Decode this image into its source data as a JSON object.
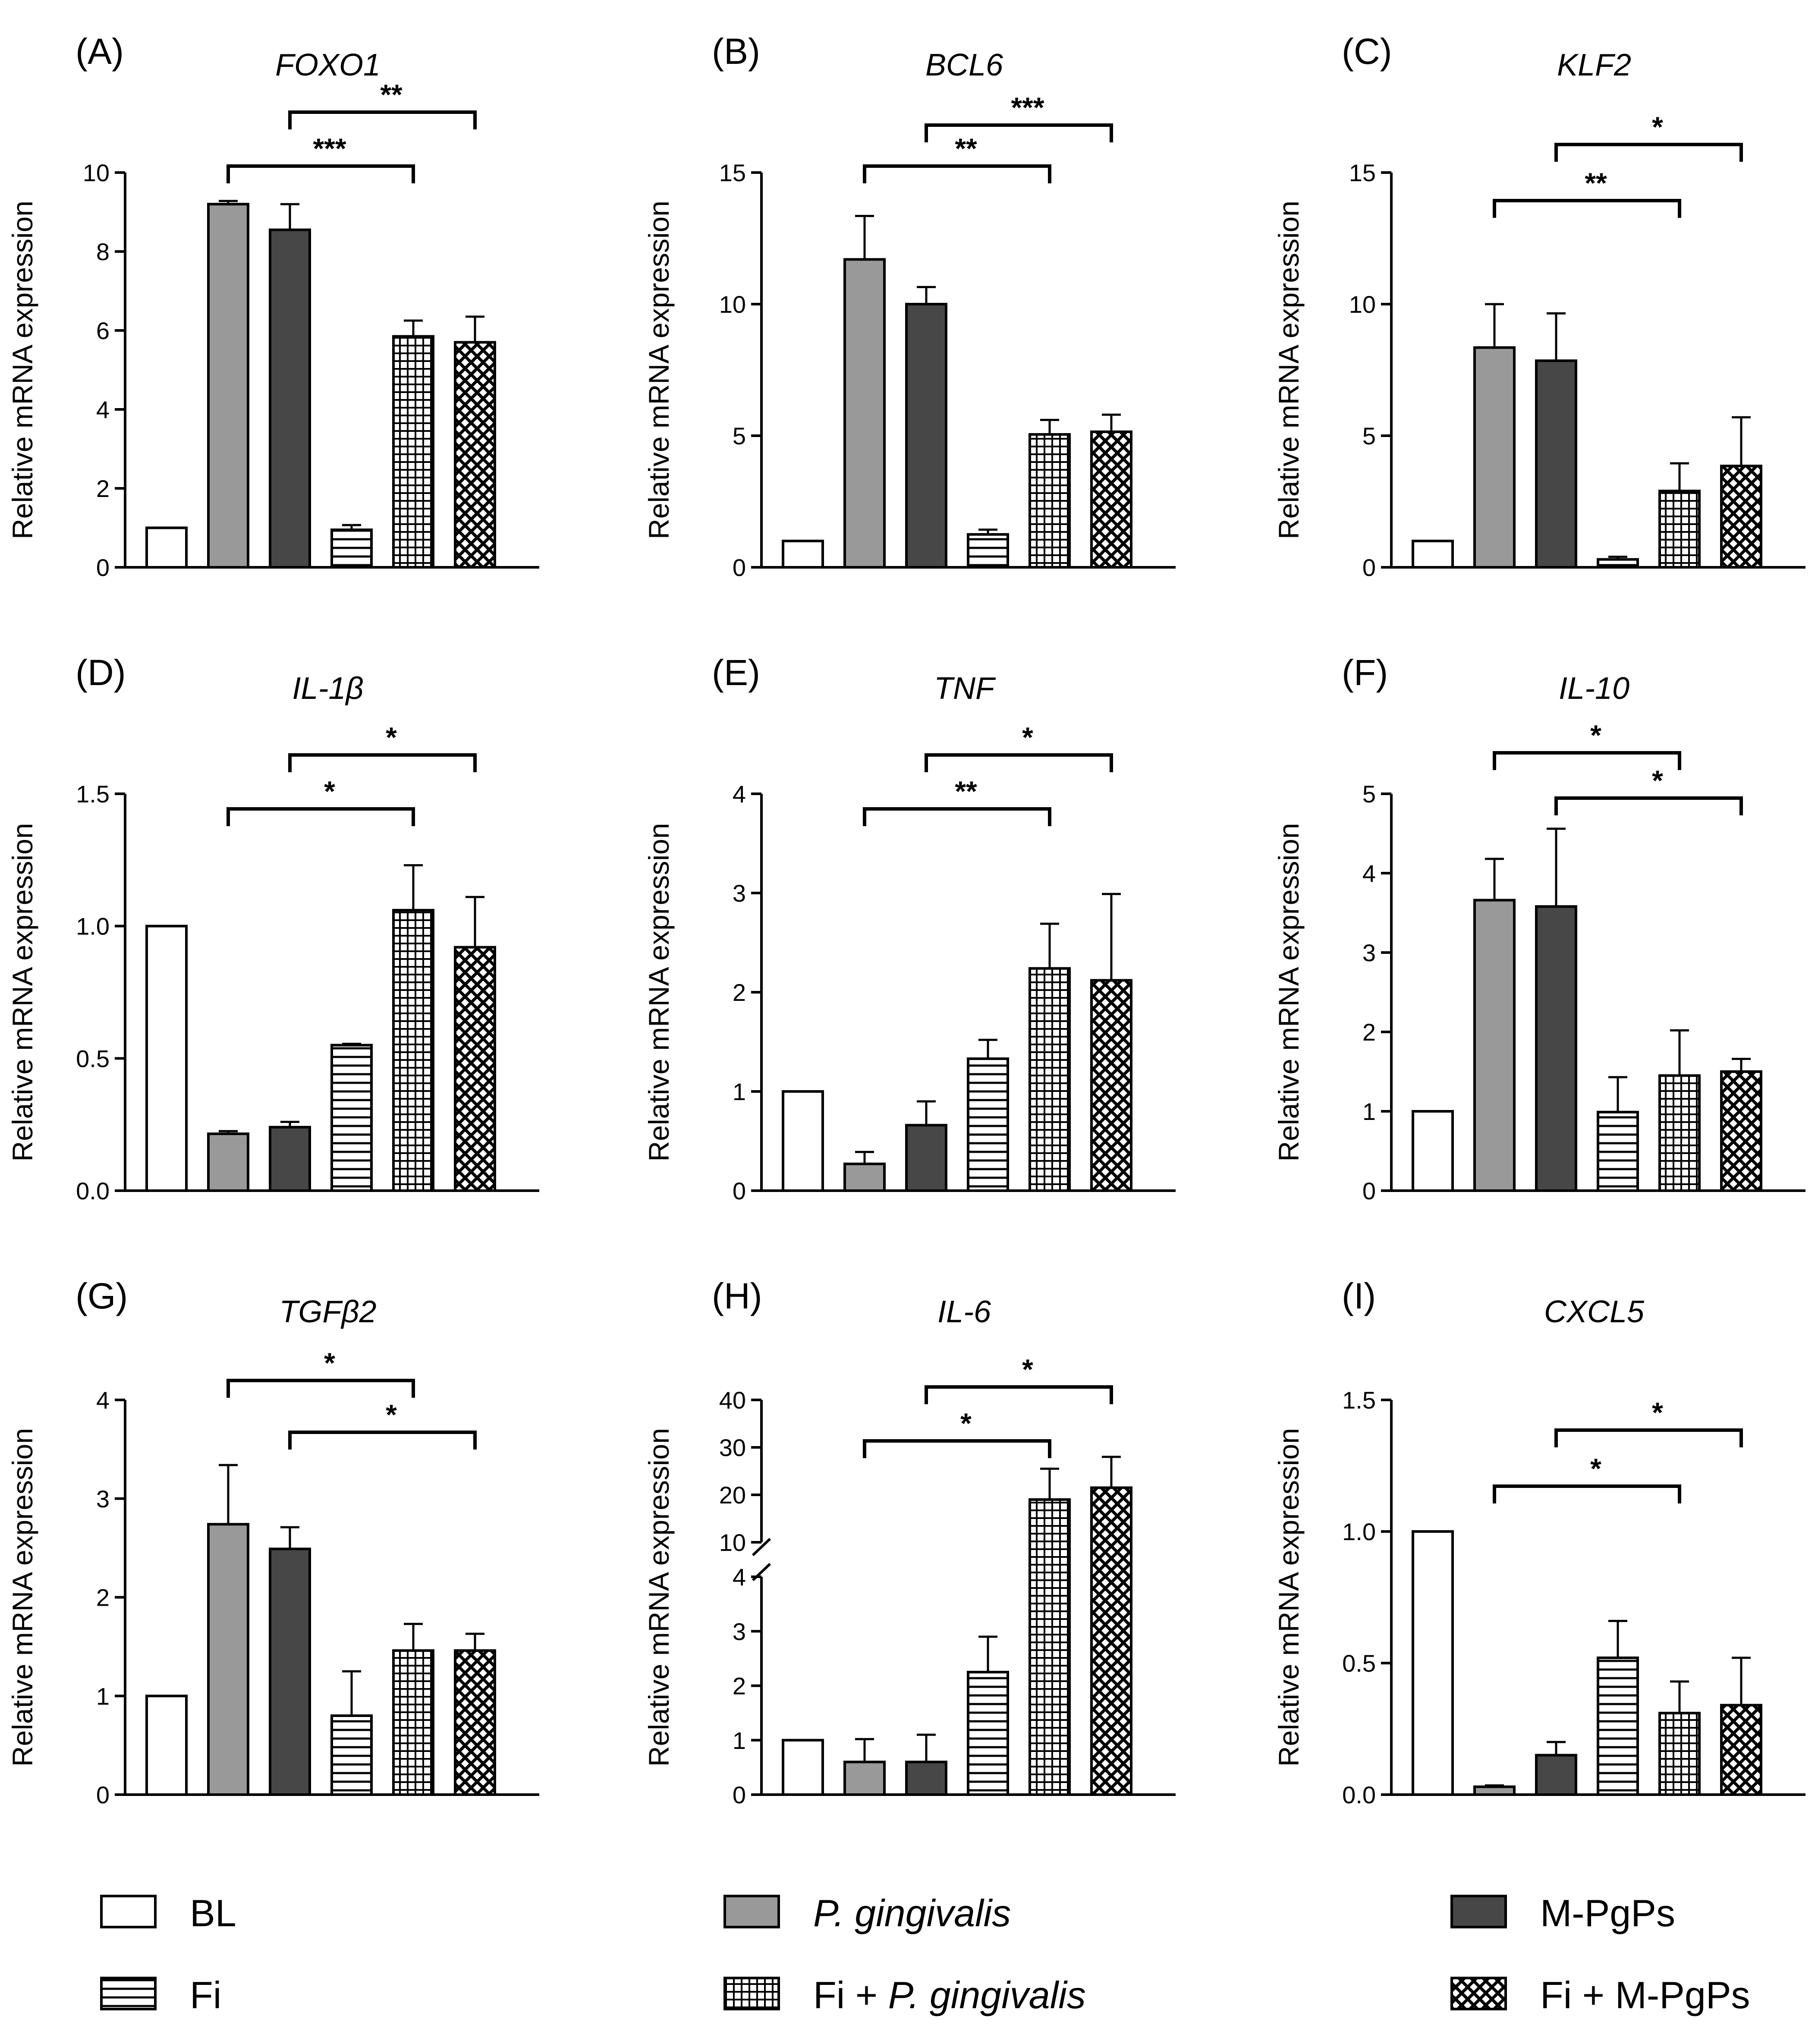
{
  "colors": {
    "bl": "#ffffff",
    "pg": "#999999",
    "mpgps": "#474747",
    "ink": "#000000"
  },
  "groups": [
    {
      "key": "bl",
      "name": "BL",
      "name_parts": [
        {
          "t": "BL",
          "i": false
        }
      ]
    },
    {
      "key": "pg",
      "name": "P. gingivalis",
      "name_parts": [
        {
          "t": "P. gingivalis",
          "i": true
        }
      ]
    },
    {
      "key": "mpgps",
      "name": "M-PgPs",
      "name_parts": [
        {
          "t": "M-PgPs",
          "i": false
        }
      ]
    },
    {
      "key": "fi",
      "name": "Fi",
      "name_parts": [
        {
          "t": "Fi",
          "i": false
        }
      ]
    },
    {
      "key": "fi_pg",
      "name": "Fi + P. gingivalis",
      "name_parts": [
        {
          "t": "Fi + ",
          "i": false
        },
        {
          "t": "P. gingivalis",
          "i": true
        }
      ]
    },
    {
      "key": "fi_mpgps",
      "name": "Fi + M-PgPs",
      "name_parts": [
        {
          "t": "Fi + M-PgPs",
          "i": false
        }
      ]
    }
  ],
  "chart_data": [
    {
      "type": "bar",
      "panel": "(A)",
      "title": "FOXO1",
      "ylabel": "Relative mRNA expression",
      "ylim": [
        0,
        10
      ],
      "yticks": [
        "0",
        "2",
        "4",
        "6",
        "8",
        "10"
      ],
      "ytick_values": [
        0,
        2,
        4,
        6,
        8,
        10
      ],
      "categories": [
        "BL",
        "P. gingivalis",
        "M-PgPs",
        "Fi",
        "Fi + P. gingivalis",
        "Fi + M-PgPs"
      ],
      "values": [
        1.0,
        9.2,
        8.55,
        0.95,
        5.85,
        5.7
      ],
      "errors": [
        0,
        0.08,
        0.65,
        0.12,
        0.4,
        0.65
      ],
      "significance": [
        {
          "from": 1,
          "to": 4,
          "label": "***",
          "level": 1
        },
        {
          "from": 2,
          "to": 5,
          "label": "**",
          "level": 2
        }
      ]
    },
    {
      "type": "bar",
      "panel": "(B)",
      "title": "BCL6",
      "ylabel": "Relative mRNA expression",
      "ylim": [
        0,
        15
      ],
      "yticks": [
        "0",
        "5",
        "10",
        "15"
      ],
      "ytick_values": [
        0,
        5,
        10,
        15
      ],
      "categories": [
        "BL",
        "P. gingivalis",
        "M-PgPs",
        "Fi",
        "Fi + P. gingivalis",
        "Fi + M-PgPs"
      ],
      "values": [
        1.0,
        11.7,
        10.0,
        1.25,
        5.05,
        5.15
      ],
      "errors": [
        0,
        1.65,
        0.65,
        0.18,
        0.55,
        0.65
      ],
      "significance": [
        {
          "from": 1,
          "to": 4,
          "label": "**",
          "level": 1
        },
        {
          "from": 2,
          "to": 5,
          "label": "***",
          "level": 2
        }
      ]
    },
    {
      "type": "bar",
      "panel": "(C)",
      "title": "KLF2",
      "ylabel": "Relative mRNA expression",
      "ylim": [
        0,
        15
      ],
      "yticks": [
        "0",
        "5",
        "10",
        "15"
      ],
      "ytick_values": [
        0,
        5,
        10,
        15
      ],
      "categories": [
        "BL",
        "P. gingivalis",
        "M-PgPs",
        "Fi",
        "Fi + P. gingivalis",
        "Fi + M-PgPs"
      ],
      "values": [
        1.0,
        8.35,
        7.85,
        0.3,
        2.9,
        3.85
      ],
      "errors": [
        0,
        1.65,
        1.8,
        0.1,
        1.05,
        1.85
      ],
      "significance": [
        {
          "from": 1,
          "to": 4,
          "label": "**",
          "level": 1
        },
        {
          "from": 2,
          "to": 5,
          "label": "*",
          "level": 2
        }
      ]
    },
    {
      "type": "bar",
      "panel": "(D)",
      "title": "IL-1β",
      "ylabel": "Relative mRNA expression",
      "ylim": [
        0,
        1.5
      ],
      "yticks": [
        "0.0",
        "0.5",
        "1.0",
        "1.5"
      ],
      "ytick_values": [
        0,
        0.5,
        1.0,
        1.5
      ],
      "categories": [
        "BL",
        "P. gingivalis",
        "M-PgPs",
        "Fi",
        "Fi + P. gingivalis",
        "Fi + M-PgPs"
      ],
      "values": [
        1.0,
        0.215,
        0.24,
        0.55,
        1.06,
        0.92
      ],
      "errors": [
        0,
        0.01,
        0.02,
        0.005,
        0.17,
        0.19
      ],
      "significance": [
        {
          "from": 1,
          "to": 4,
          "label": "*",
          "level": 1
        },
        {
          "from": 2,
          "to": 5,
          "label": "*",
          "level": 2
        }
      ]
    },
    {
      "type": "bar",
      "panel": "(E)",
      "title": "TNF",
      "ylabel": "Relative mRNA expression",
      "ylim": [
        0,
        4
      ],
      "yticks": [
        "0",
        "1",
        "2",
        "3",
        "4"
      ],
      "ytick_values": [
        0,
        1,
        2,
        3,
        4
      ],
      "categories": [
        "BL",
        "P. gingivalis",
        "M-PgPs",
        "Fi",
        "Fi + P. gingivalis",
        "Fi + M-PgPs"
      ],
      "values": [
        1.0,
        0.27,
        0.66,
        1.33,
        2.24,
        2.12
      ],
      "errors": [
        0,
        0.12,
        0.24,
        0.19,
        0.45,
        0.87
      ],
      "significance": [
        {
          "from": 1,
          "to": 4,
          "label": "**",
          "level": 1
        },
        {
          "from": 2,
          "to": 5,
          "label": "*",
          "level": 2
        }
      ]
    },
    {
      "type": "bar",
      "panel": "(F)",
      "title": "IL-10",
      "ylabel": "Relative mRNA expression",
      "ylim": [
        0,
        5
      ],
      "yticks": [
        "0",
        "1",
        "2",
        "3",
        "4",
        "5"
      ],
      "ytick_values": [
        0,
        1,
        2,
        3,
        4,
        5
      ],
      "categories": [
        "BL",
        "P. gingivalis",
        "M-PgPs",
        "Fi",
        "Fi + P. gingivalis",
        "Fi + M-PgPs"
      ],
      "values": [
        1.0,
        3.66,
        3.58,
        0.99,
        1.45,
        1.5
      ],
      "errors": [
        0,
        0.52,
        0.98,
        0.44,
        0.57,
        0.16
      ],
      "significance": [
        {
          "from": 1,
          "to": 4,
          "label": "*",
          "level": 2
        },
        {
          "from": 2,
          "to": 5,
          "label": "*",
          "level": 1
        }
      ]
    },
    {
      "type": "bar",
      "panel": "(G)",
      "title": "TGFβ2",
      "ylabel": "Relative mRNA expression",
      "ylim": [
        0,
        4
      ],
      "yticks": [
        "0",
        "1",
        "2",
        "3",
        "4"
      ],
      "ytick_values": [
        0,
        1,
        2,
        3,
        4
      ],
      "categories": [
        "BL",
        "P. gingivalis",
        "M-PgPs",
        "Fi",
        "Fi + P. gingivalis",
        "Fi + M-PgPs"
      ],
      "values": [
        1.0,
        2.74,
        2.49,
        0.8,
        1.46,
        1.46
      ],
      "errors": [
        0,
        0.6,
        0.22,
        0.45,
        0.27,
        0.17
      ],
      "significance": [
        {
          "from": 1,
          "to": 4,
          "label": "*",
          "level": 2
        },
        {
          "from": 2,
          "to": 5,
          "label": "*",
          "level": 1
        }
      ]
    },
    {
      "type": "bar",
      "panel": "(H)",
      "title": "IL-6",
      "ylabel": "Relative mRNA expression",
      "axis_break": {
        "lower": [
          0,
          4
        ],
        "upper": [
          10,
          40
        ]
      },
      "yticks_lower": [
        "0",
        "1",
        "2",
        "3",
        "4"
      ],
      "yticks_lower_values": [
        0,
        1,
        2,
        3,
        4
      ],
      "yticks_upper": [
        "10",
        "20",
        "30",
        "40"
      ],
      "yticks_upper_values": [
        10,
        20,
        30,
        40
      ],
      "categories": [
        "BL",
        "P. gingivalis",
        "M-PgPs",
        "Fi",
        "Fi + P. gingivalis",
        "Fi + M-PgPs"
      ],
      "values": [
        1.0,
        0.6,
        0.6,
        2.25,
        19.0,
        21.5
      ],
      "errors": [
        0,
        0.42,
        0.5,
        0.65,
        6.5,
        6.5
      ],
      "significance": [
        {
          "from": 1,
          "to": 4,
          "label": "*",
          "level": 1
        },
        {
          "from": 2,
          "to": 5,
          "label": "*",
          "level": 2
        }
      ]
    },
    {
      "type": "bar",
      "panel": "(I)",
      "title": "CXCL5",
      "ylabel": "Relative mRNA expression",
      "ylim": [
        0,
        1.5
      ],
      "yticks": [
        "0.0",
        "0.5",
        "1.0",
        "1.5"
      ],
      "ytick_values": [
        0,
        0.5,
        1.0,
        1.5
      ],
      "categories": [
        "BL",
        "P. gingivalis",
        "M-PgPs",
        "Fi",
        "Fi + P. gingivalis",
        "Fi + M-PgPs"
      ],
      "values": [
        1.0,
        0.03,
        0.15,
        0.52,
        0.31,
        0.34
      ],
      "errors": [
        0,
        0.005,
        0.05,
        0.14,
        0.12,
        0.18
      ],
      "significance": [
        {
          "from": 1,
          "to": 4,
          "label": "*",
          "level": 1
        },
        {
          "from": 2,
          "to": 5,
          "label": "*",
          "level": 2
        }
      ]
    }
  ]
}
